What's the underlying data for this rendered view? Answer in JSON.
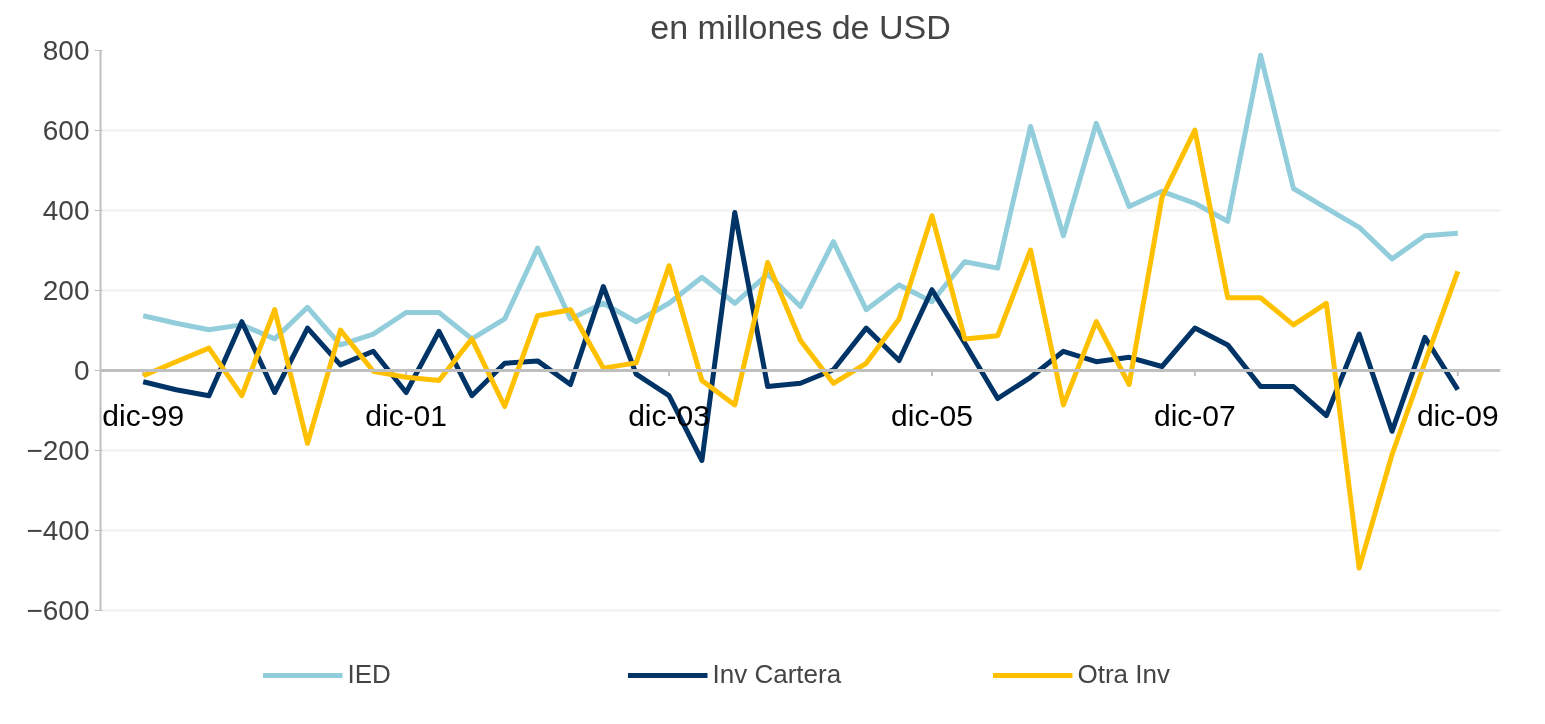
{
  "chart_data": {
    "type": "line",
    "title": "en millones de USD",
    "categories": [
      "dic-99",
      null,
      null,
      null,
      null,
      null,
      null,
      null,
      "dic-01",
      null,
      null,
      null,
      null,
      null,
      null,
      null,
      "dic-03",
      null,
      null,
      null,
      null,
      null,
      null,
      null,
      "dic-05",
      null,
      null,
      null,
      null,
      null,
      null,
      null,
      "dic-07",
      null,
      null,
      null,
      null,
      null,
      null,
      null,
      "dic-09"
    ],
    "series": [
      {
        "name": "IED",
        "color": "#92cddc",
        "values": [
          137,
          118,
          102,
          114,
          79,
          158,
          64,
          91,
          145,
          145,
          79,
          129,
          306,
          129,
          168,
          122,
          168,
          233,
          168,
          241,
          160,
          322,
          152,
          214,
          172,
          272,
          256,
          610,
          337,
          618,
          410,
          448,
          418,
          373,
          788,
          455,
          406,
          358,
          279,
          337,
          343
        ]
      },
      {
        "name": "Inv Cartera",
        "color": "#003366",
        "values": [
          -28,
          -48,
          -63,
          122,
          -55,
          106,
          14,
          48,
          -55,
          98,
          -63,
          18,
          24,
          -35,
          210,
          -9,
          -63,
          -225,
          395,
          -40,
          -32,
          2,
          106,
          25,
          202,
          68,
          -70,
          -17,
          48,
          22,
          33,
          10,
          106,
          64,
          -40,
          -40,
          -113,
          91,
          -152,
          83,
          -48
        ]
      },
      {
        "name": "Otra Inv",
        "color": "#ffc000",
        "values": [
          -13,
          22,
          56,
          -63,
          152,
          -182,
          101,
          -2,
          -17,
          -25,
          79,
          -90,
          137,
          152,
          6,
          19,
          262,
          -25,
          -86,
          270,
          75,
          -32,
          18,
          129,
          387,
          79,
          87,
          301,
          -86,
          122,
          -35,
          433,
          601,
          182,
          182,
          114,
          168,
          -494,
          -210,
          20,
          248
        ]
      }
    ],
    "ylim": [
      -600,
      800
    ],
    "yticks": [
      -600,
      -400,
      -200,
      0,
      200,
      400,
      600,
      800
    ],
    "grid": "y",
    "legend": "bottom",
    "line_style": "solid",
    "marker": "none"
  }
}
